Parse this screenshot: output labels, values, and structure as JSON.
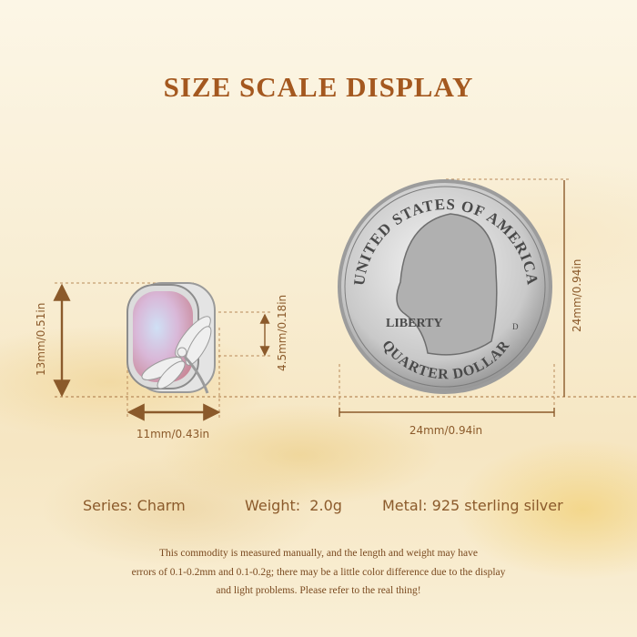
{
  "title": "SIZE SCALE DISPLAY",
  "charm": {
    "height_label": "13mm/0.51in",
    "width_label": "11mm/0.43in",
    "dragonfly_label": "4.5mm/0.18in"
  },
  "coin": {
    "legend_top": "UNITED STATES OF AMERICA",
    "legend_liberty": "LIBERTY",
    "legend_bottom": "QUARTER DOLLAR",
    "mint_mark": "D",
    "height_label": "24mm/0.94in",
    "width_label": "24mm/0.94in"
  },
  "specs": {
    "series": "Series: Charm",
    "weight": "Weight:  2.0g",
    "metal": "Metal: 925 sterling silver"
  },
  "disclaimer": [
    "This commodity is measured manually, and the length and weight may have",
    "errors of 0.1-0.2mm and 0.1-0.2g; there may be a little color difference due to the display",
    "and light problems. Please refer to the real thing!"
  ],
  "colors": {
    "title": "#a4581f",
    "dimension": "#8b5a2b"
  }
}
